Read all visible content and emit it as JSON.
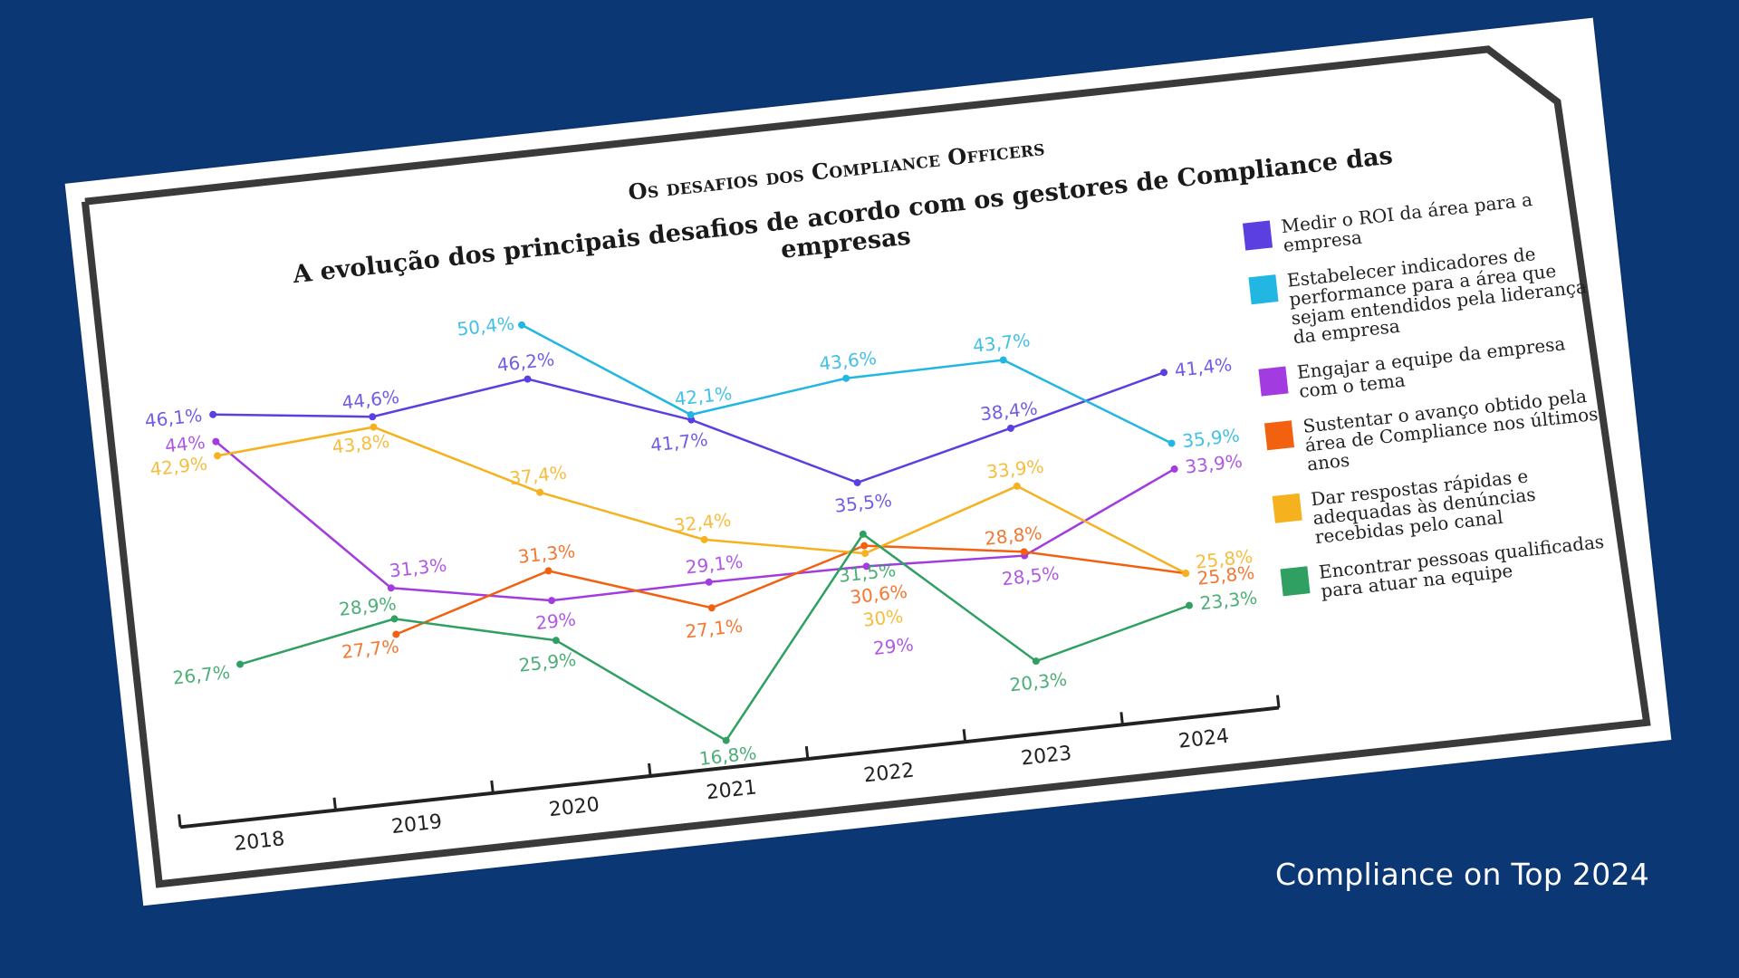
{
  "footer": {
    "text": "Compliance on Top 2024"
  },
  "chart_data": {
    "type": "line",
    "title": "Os desafios dos Compliance Officers",
    "subtitle": "A evolução dos principais desafios de acordo com os gestores de Compliance das empresas",
    "xlabel": "",
    "ylabel": "",
    "x": [
      "2018",
      "2019",
      "2020",
      "2021",
      "2022",
      "2023",
      "2024"
    ],
    "ylim": [
      15,
      52
    ],
    "grid": false,
    "legend_position": "right",
    "series": [
      {
        "name": "Medir o ROI da área para a empresa",
        "color": "#5b3fe0",
        "values": [
          46.1,
          44.6,
          46.2,
          41.7,
          35.5,
          38.4,
          41.4
        ],
        "labels": [
          "46,1%",
          "44,6%",
          "46,2%",
          "41,7%",
          "35,5%",
          "38,4%",
          "41,4%"
        ]
      },
      {
        "name": "Estabelecer indicadores de performance para a área que sejam entendidos pela liderança da empresa",
        "color": "#22b6e2",
        "values": [
          null,
          null,
          50.4,
          42.1,
          43.6,
          43.7,
          35.9
        ],
        "labels": [
          null,
          null,
          "50,4%",
          "42,1%",
          "43,6%",
          "43,7%",
          "35,9%"
        ]
      },
      {
        "name": "Engajar a equipe da empresa com o tema",
        "color": "#a23be0",
        "values": [
          44,
          31.3,
          29,
          29.1,
          29,
          28.5,
          33.9
        ],
        "labels": [
          "44%",
          "31,3%",
          "29%",
          "29,1%",
          "29%",
          "28,5%",
          "33,9%"
        ]
      },
      {
        "name": "Sustentar o avanço obtido pela área de Compliance nos últimos anos",
        "color": "#f2610f",
        "values": [
          null,
          27.7,
          31.3,
          27.1,
          30.6,
          28.8,
          25.8
        ],
        "labels": [
          null,
          "27,7%",
          "31,3%",
          "27,1%",
          "30,6%",
          "28,8%",
          "25,8%"
        ]
      },
      {
        "name": "Dar respostas rápidas e adequadas às denúncias recebidas pelo canal",
        "color": "#f5b21e",
        "values": [
          42.9,
          43.8,
          37.4,
          32.4,
          30,
          33.9,
          25.8
        ],
        "labels": [
          "42,9%",
          "43,8%",
          "37,4%",
          "32,4%",
          "30%",
          "33,9%",
          "25,8%"
        ]
      },
      {
        "name": "Encontrar pessoas qualificadas para atuar na equipe",
        "color": "#2fa061",
        "values": [
          26.7,
          28.9,
          25.9,
          16.8,
          31.5,
          20.3,
          23.3
        ],
        "labels": [
          "26,7%",
          "28,9%",
          "25,9%",
          "16,8%",
          "31,5%",
          "20,3%",
          "23,3%"
        ]
      }
    ]
  }
}
